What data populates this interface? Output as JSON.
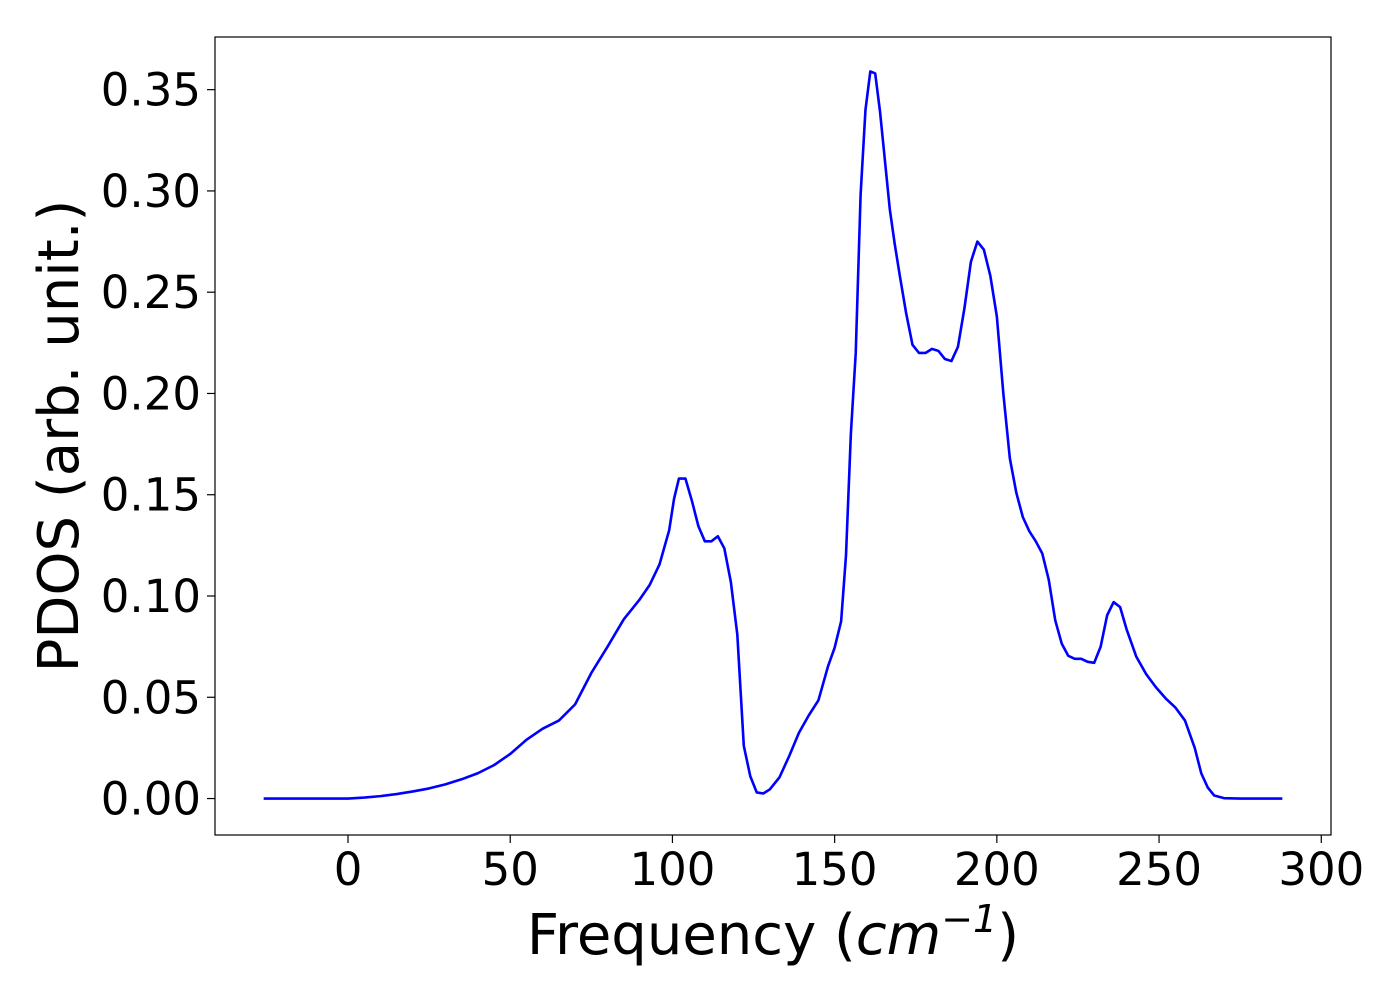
{
  "chart_data": {
    "type": "line",
    "title": "",
    "xlabel": {
      "prefix": "Frequency (",
      "unit_main": "cm",
      "unit_sup": "−1",
      "suffix": ")"
    },
    "ylabel": "PDOS (arb. unit.)",
    "xlim": [
      -41,
      303
    ],
    "ylim": [
      -0.018,
      0.376
    ],
    "xticks": [
      0,
      50,
      100,
      150,
      200,
      250,
      300
    ],
    "yticks": [
      0.0,
      0.05,
      0.1,
      0.15,
      0.2,
      0.25,
      0.3,
      0.35
    ],
    "xtick_labels": [
      "0",
      "50",
      "100",
      "150",
      "200",
      "250",
      "300"
    ],
    "ytick_labels": [
      "0.00",
      "0.05",
      "0.10",
      "0.15",
      "0.20",
      "0.25",
      "0.30",
      "0.35"
    ],
    "grid": false,
    "series": [
      {
        "color": "#0000ff",
        "x": [
          -26,
          0,
          5,
          10,
          15,
          20,
          25,
          30,
          35,
          40,
          45,
          50,
          55,
          60,
          65,
          70,
          75,
          80,
          85,
          90,
          93,
          96,
          99,
          100.5,
          102,
          104,
          106,
          108,
          110,
          112,
          114,
          116,
          118,
          120,
          122,
          124,
          126,
          128,
          130,
          133,
          136,
          139,
          142,
          145,
          148,
          150,
          152,
          153.5,
          155,
          156.5,
          158,
          159.5,
          161,
          162.5,
          164,
          165.5,
          167,
          168.5,
          170,
          172,
          174,
          176,
          178,
          180,
          182,
          184,
          186,
          188,
          190,
          192,
          194,
          196,
          198,
          200,
          202,
          204,
          206,
          208,
          210,
          212,
          214,
          216,
          218,
          220,
          222,
          224,
          226,
          228,
          230,
          232,
          234,
          236,
          238,
          240,
          243,
          246,
          249,
          252,
          255,
          258,
          261,
          263,
          265,
          267,
          270,
          275,
          288
        ],
        "y": [
          0.0,
          0.0,
          0.0005,
          0.0012,
          0.0022,
          0.0035,
          0.005,
          0.007,
          0.0095,
          0.0125,
          0.0165,
          0.022,
          0.029,
          0.0345,
          0.0385,
          0.0465,
          0.062,
          0.075,
          0.0885,
          0.0985,
          0.1055,
          0.1155,
          0.1325,
          0.148,
          0.158,
          0.158,
          0.147,
          0.1345,
          0.127,
          0.127,
          0.1295,
          0.1235,
          0.107,
          0.081,
          0.026,
          0.011,
          0.003,
          0.0025,
          0.0045,
          0.0105,
          0.021,
          0.0325,
          0.041,
          0.0485,
          0.0655,
          0.0745,
          0.0875,
          0.12,
          0.18,
          0.22,
          0.298,
          0.34,
          0.359,
          0.358,
          0.339,
          0.315,
          0.291,
          0.274,
          0.259,
          0.24,
          0.224,
          0.22,
          0.22,
          0.222,
          0.221,
          0.217,
          0.216,
          0.223,
          0.242,
          0.265,
          0.275,
          0.271,
          0.258,
          0.238,
          0.2,
          0.168,
          0.151,
          0.139,
          0.132,
          0.127,
          0.121,
          0.108,
          0.088,
          0.0765,
          0.0705,
          0.069,
          0.069,
          0.0675,
          0.067,
          0.075,
          0.0905,
          0.097,
          0.0945,
          0.0835,
          0.07,
          0.0615,
          0.055,
          0.0495,
          0.045,
          0.0385,
          0.025,
          0.0125,
          0.0055,
          0.0015,
          0.0002,
          0.0,
          0.0
        ]
      }
    ]
  }
}
